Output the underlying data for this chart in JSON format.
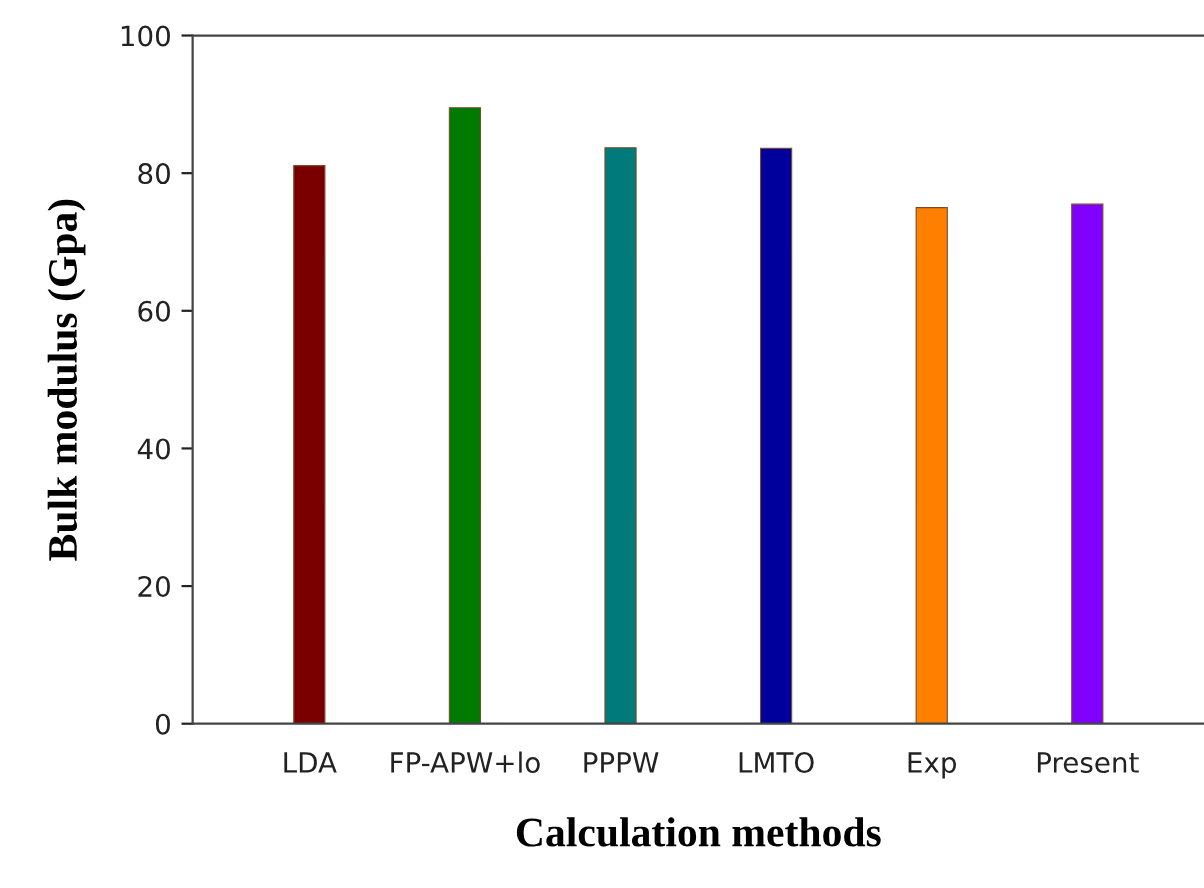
{
  "chart_data": {
    "type": "bar",
    "xlabel": "Calculation methods",
    "ylabel": "Bulk modulus (Gpa)",
    "categories": [
      "LDA",
      "FP-APW+lo",
      "PPPW",
      "LMTO",
      "Exp",
      "Present"
    ],
    "values": [
      81.1,
      89.5,
      83.7,
      83.6,
      75,
      75.5
    ],
    "colors": [
      "#7a0000",
      "#007a00",
      "#007a7a",
      "#00009c",
      "#ff8000",
      "#8000ff"
    ],
    "ylim": [
      0,
      100
    ],
    "yticks": [
      0,
      20,
      40,
      60,
      80,
      100
    ],
    "grid": false
  }
}
